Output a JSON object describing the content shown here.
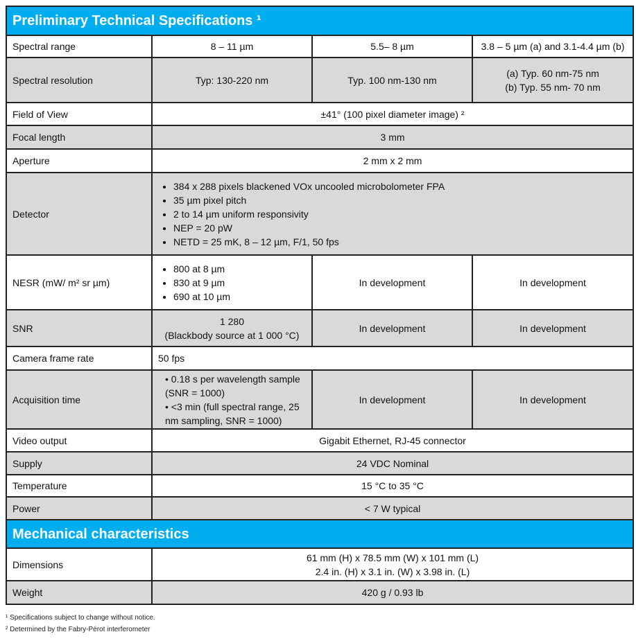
{
  "sections": [
    {
      "title": "Preliminary Technical Specifications ¹",
      "rows": [
        {
          "label": "Spectral range",
          "cells": [
            {
              "text": "8 – 11 µm"
            },
            {
              "text": "5.5– 8 µm"
            },
            {
              "text": "3.8 – 5 µm (a) and 3.1-4.4 µm (b)"
            }
          ]
        },
        {
          "label": "Spectral resolution",
          "cells": [
            {
              "text": "Typ: 130-220 nm"
            },
            {
              "text": "Typ. 100 nm-130 nm"
            },
            {
              "lines": [
                "(a)   Typ. 60 nm-75 nm",
                "(b)   Typ. 55 nm- 70 nm"
              ]
            }
          ]
        },
        {
          "label": "Field of View",
          "cells": [
            {
              "text": "±41° (100 pixel diameter image) ²",
              "span": 3
            }
          ]
        },
        {
          "label": "Focal length",
          "cells": [
            {
              "text": "3 mm",
              "span": 3
            }
          ]
        },
        {
          "label": "Aperture",
          "cells": [
            {
              "text": "2 mm x 2 mm",
              "span": 3
            }
          ]
        },
        {
          "label": "Detector",
          "cells": [
            {
              "bullets": [
                "384 x 288 pixels blackened VOx uncooled microbolometer FPA",
                "35 µm pixel pitch",
                "2 to 14 µm uniform responsivity",
                "NEP = 20 pW",
                "NETD = 25 mK, 8 – 12 µm, F/1, 50 fps"
              ],
              "span": 3
            }
          ]
        },
        {
          "label": "NESR (mW/ m² sr µm)",
          "cells": [
            {
              "bullets": [
                "800 at 8 µm",
                "830 at 9 µm",
                "690 at 10 µm"
              ]
            },
            {
              "text": "In development"
            },
            {
              "text": "In development"
            }
          ]
        },
        {
          "label": "SNR",
          "cells": [
            {
              "lines": [
                "1 280",
                "(Blackbody source at 1 000 °C)"
              ]
            },
            {
              "text": "In development"
            },
            {
              "text": "In development"
            }
          ]
        },
        {
          "label": "Camera frame rate",
          "cells": [
            {
              "text": "50 fps",
              "span": 3,
              "left": true
            }
          ]
        },
        {
          "label": "Acquisition time",
          "cells": [
            {
              "tight": [
                "0.18 s per wavelength sample (SNR = 1000)",
                "<3 min (full spectral range, 25 nm sampling, SNR = 1000)"
              ]
            },
            {
              "text": "In development"
            },
            {
              "text": "In development"
            }
          ]
        },
        {
          "label": "Video output",
          "cells": [
            {
              "text": "Gigabit Ethernet, RJ-45 connector",
              "span": 3
            }
          ]
        },
        {
          "label": "Supply",
          "cells": [
            {
              "text": "24 VDC Nominal",
              "span": 3
            }
          ]
        },
        {
          "label": "Temperature",
          "cells": [
            {
              "text": "15 °C to 35 °C",
              "span": 3
            }
          ]
        },
        {
          "label": "Power",
          "cells": [
            {
              "text": "< 7 W typical",
              "span": 3
            }
          ]
        }
      ]
    },
    {
      "title": "Mechanical characteristics",
      "rows": [
        {
          "label": "Dimensions",
          "cells": [
            {
              "lines": [
                "61 mm (H) x 78.5 mm (W)  x 101 mm (L)",
                "2.4 in. (H) x 3.1 in. (W) x 3.98 in. (L)"
              ],
              "span": 3
            }
          ]
        },
        {
          "label": "Weight",
          "cells": [
            {
              "text": "420 g / 0.93 lb",
              "span": 3
            }
          ]
        }
      ]
    }
  ],
  "footnotes": [
    "¹ Specifications subject to change without notice.",
    "² Determined by the Fabry-Pérot interferometer"
  ],
  "colors": {
    "header": "#00aeef",
    "row_alt": "#d9d9d9"
  }
}
